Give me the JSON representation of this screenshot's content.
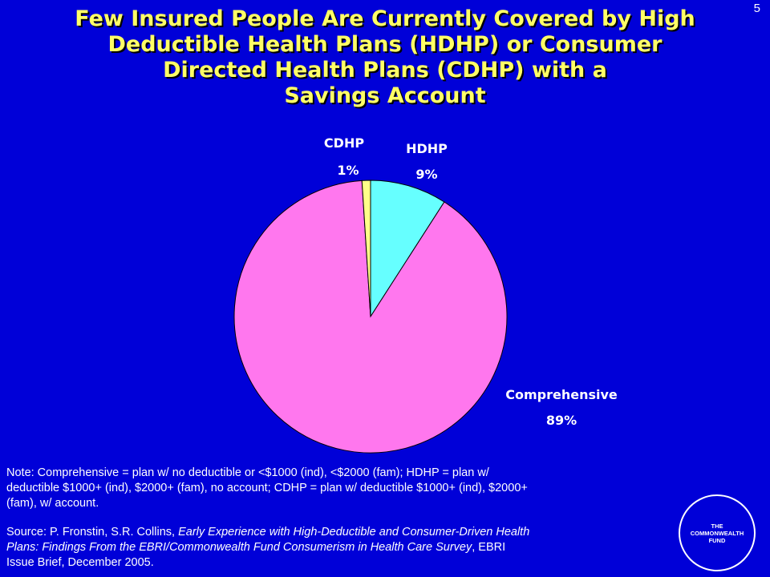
{
  "slide": {
    "number": "5"
  },
  "title": {
    "lines": [
      "Few Insured People Are Currently Covered by High",
      "Deductible Health Plans (HDHP) or Consumer",
      "Directed Health Plans (CDHP) with a",
      "Savings Account"
    ]
  },
  "chart_data": {
    "type": "pie",
    "categories": [
      "HDHP",
      "Comprehensive",
      "CDHP"
    ],
    "values": [
      9,
      89,
      1
    ],
    "value_labels": [
      "9%",
      "89%",
      "1%"
    ],
    "colors": [
      "#66ffff",
      "#ff77ee",
      "#ffff88"
    ],
    "outline_color": "#000000",
    "label_color": "#ffffff"
  },
  "note": {
    "lines": [
      "Note: Comprehensive = plan w/ no deductible or <$1000 (ind), <$2000 (fam); HDHP = plan w/",
      "deductible $1000+ (ind), $2000+ (fam), no account; CDHP = plan w/ deductible $1000+ (ind), $2000+",
      "(fam), w/ account."
    ]
  },
  "source": {
    "prefix": "Source: P. Fronstin, S.R. Collins, ",
    "title_italic_1": "Early Experience with High-Deductible and Consumer-Driven Health",
    "title_italic_2": "Plans: Findings From the EBRI/Commonwealth Fund Consumerism in Health Care Survey",
    "suffix_1": ", EBRI",
    "line3": "Issue Brief, December 2005."
  },
  "logo": {
    "lines": [
      "THE",
      "COMMONWEALTH",
      "FUND"
    ]
  },
  "colors": {
    "background": "#0000d8",
    "title": "#ffff66",
    "text": "#ffffff"
  }
}
